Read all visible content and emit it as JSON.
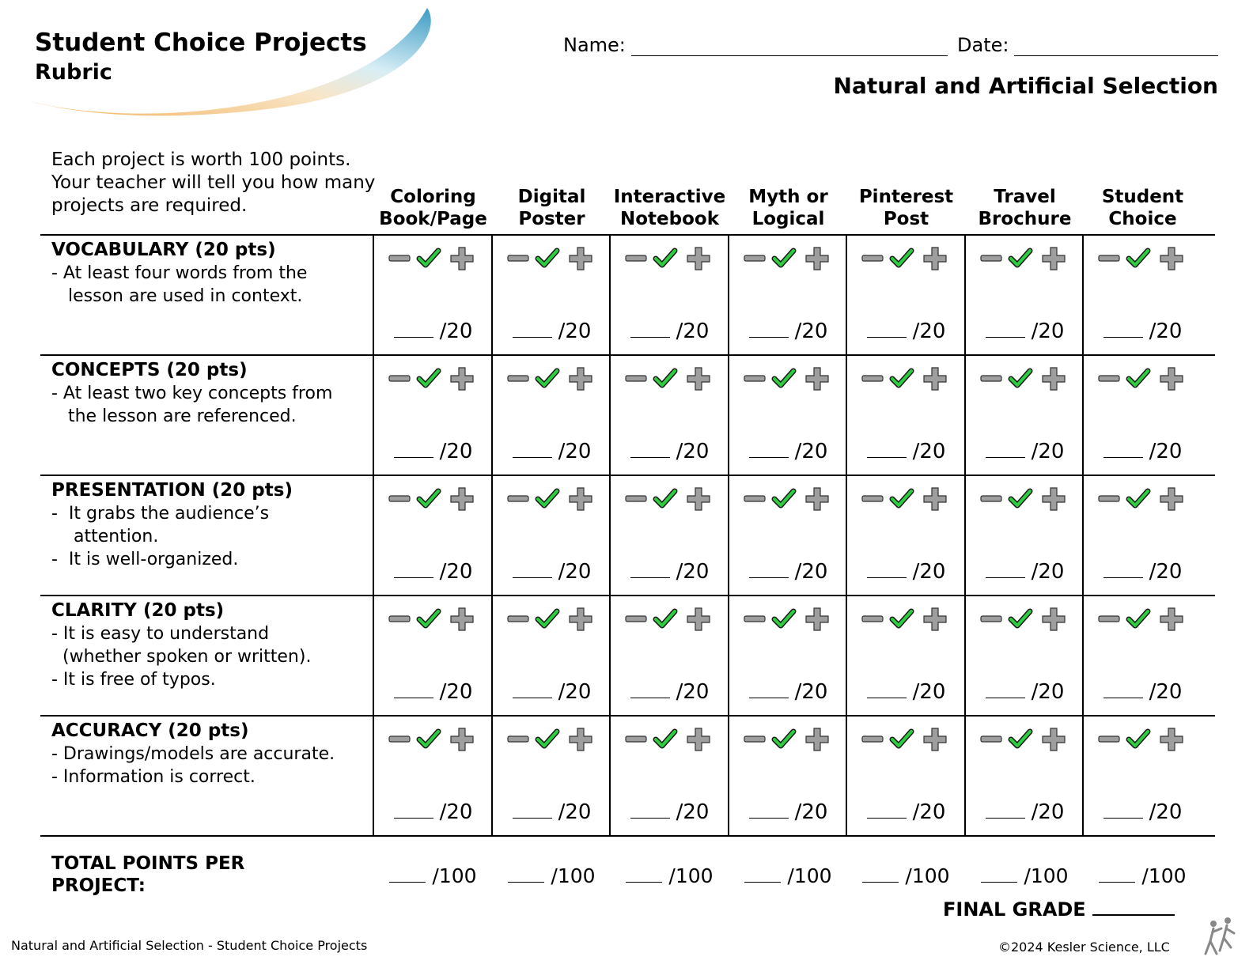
{
  "header": {
    "title": "Student Choice Projects",
    "subtitle": "Rubric",
    "name_label": "Name:",
    "date_label": "Date:",
    "topic": "Natural and Artificial Selection"
  },
  "intro": "Each project is worth 100 points. Your teacher will tell you how many projects are required.",
  "columns": [
    {
      "line1": "Coloring",
      "line2": "Book/Page"
    },
    {
      "line1": "Digital",
      "line2": "Poster"
    },
    {
      "line1": "Interactive",
      "line2": "Notebook"
    },
    {
      "line1": "Myth or",
      "line2": "Logical"
    },
    {
      "line1": "Pinterest",
      "line2": "Post"
    },
    {
      "line1": "Travel",
      "line2": "Brochure"
    },
    {
      "line1": "Student",
      "line2": "Choice"
    }
  ],
  "criteria": [
    {
      "title": "VOCABULARY (20 pts)",
      "desc": [
        "- At least four words from the",
        "   lesson are used in context."
      ],
      "max": "/20"
    },
    {
      "title": "CONCEPTS (20 pts)",
      "desc": [
        "- At least two key concepts from",
        "   the lesson are referenced."
      ],
      "max": "/20"
    },
    {
      "title": "PRESENTATION (20 pts)",
      "desc": [
        "-  It grabs the audience’s",
        "    attention.",
        "-  It is well-organized."
      ],
      "max": "/20"
    },
    {
      "title": "CLARITY (20 pts)",
      "desc": [
        "- It is easy to understand",
        "  (whether spoken or written).",
        "- It is free of typos."
      ],
      "max": "/20"
    },
    {
      "title": "ACCURACY (20 pts)",
      "desc": [
        "- Drawings/models are accurate.",
        "- Information is correct."
      ],
      "max": "/20"
    }
  ],
  "icons": [
    "minus-icon",
    "checkmark-icon",
    "plus-icon"
  ],
  "colors": {
    "minus": "#9e9e9e",
    "check": "#2ecc40",
    "plus": "#9e9e9e",
    "swoosh_blue": "#4aa3c8",
    "swoosh_orange": "#f2b35e"
  },
  "total": {
    "label_line1": "TOTAL POINTS PER",
    "label_line2": "PROJECT:",
    "max": "/100"
  },
  "final_grade_label": "FINAL GRADE",
  "footer": {
    "left": "Natural and Artificial Selection - Student Choice Projects",
    "right": "©2024  Kesler Science, LLC"
  }
}
